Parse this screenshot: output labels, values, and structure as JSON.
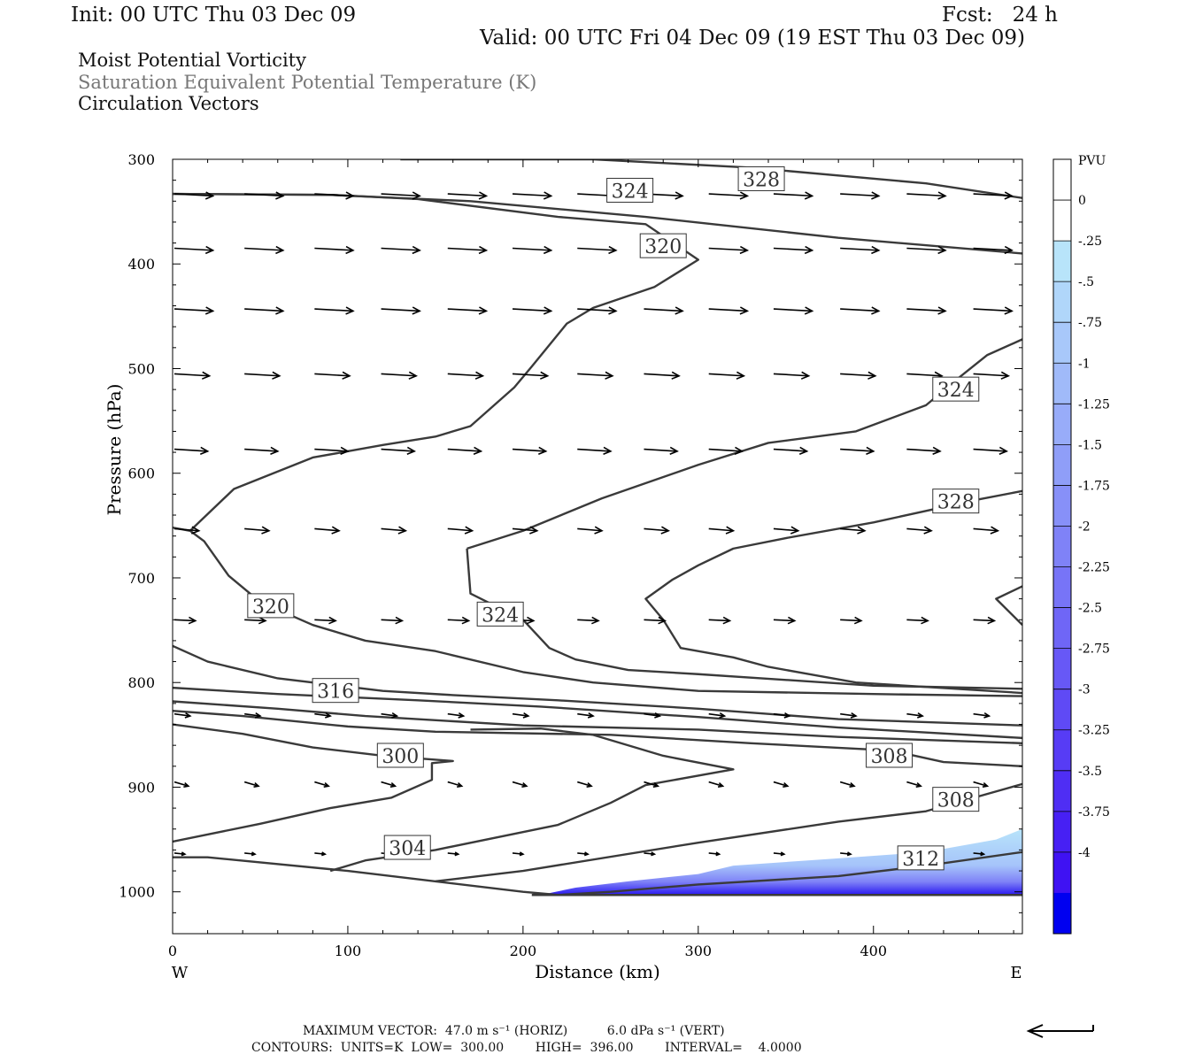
{
  "header": {
    "init": "Init: 00 UTC Thu 03 Dec 09",
    "fcst": "Fcst:   24 h",
    "valid": "Valid: 00 UTC Fri 04 Dec 09 (19 EST Thu 03 Dec 09)",
    "fields": [
      "Moist Potential Vorticity",
      "Saturation Equivalent Potential Temperature (K)",
      "Circulation Vectors"
    ]
  },
  "footer": {
    "line1": "MAXIMUM VECTOR:  47.0 m s⁻¹ (HORIZ)          6.0 dPa s⁻¹ (VERT)",
    "line2": "CONTOURS:  UNITS=K  LOW=  300.00        HIGH=  396.00        INTERVAL=    4.0000"
  },
  "colors": {
    "contour": "#3a3a3a",
    "vector": "#000000",
    "pv_scale": [
      "#ffffff",
      "#ffffff",
      "#b8e4fa",
      "#b0d6fa",
      "#a8c8fa",
      "#a0baf9",
      "#98acf9",
      "#8f9ef8",
      "#8790f8",
      "#7f82f7",
      "#7774f7",
      "#6f66f6",
      "#6758f6",
      "#5f4af5",
      "#573cf5",
      "#4f2ef4",
      "#4720f4",
      "#3f12f3",
      "#0000f0"
    ]
  },
  "chart_data": {
    "type": "cross-section",
    "xlabel": "Distance (km)",
    "ylabel": "Pressure (hPa)",
    "xlim": [
      0,
      485
    ],
    "ylim": [
      1040,
      300
    ],
    "x_ticks": [
      0,
      100,
      200,
      300,
      400
    ],
    "y_ticks": [
      300,
      400,
      500,
      600,
      700,
      800,
      900,
      1000
    ],
    "x_end_labels": {
      "left": "W",
      "right": "E"
    },
    "colorbar": {
      "title": "PVU",
      "labels": [
        "0",
        "-.25",
        "-.5",
        "-.75",
        "-1",
        "-1.25",
        "-1.5",
        "-1.75",
        "-2",
        "-2.25",
        "-2.5",
        "-2.75",
        "-3",
        "-3.25",
        "-3.5",
        "-3.75",
        "-4"
      ]
    },
    "contour_labels": [
      {
        "text": "328",
        "x": 336,
        "p": 319
      },
      {
        "text": "324",
        "x": 261,
        "p": 330
      },
      {
        "text": "320",
        "x": 280,
        "p": 383
      },
      {
        "text": "324",
        "x": 447,
        "p": 520
      },
      {
        "text": "328",
        "x": 447,
        "p": 627
      },
      {
        "text": "320",
        "x": 56,
        "p": 727
      },
      {
        "text": "324",
        "x": 187,
        "p": 735
      },
      {
        "text": "316",
        "x": 93,
        "p": 808
      },
      {
        "text": "300",
        "x": 130,
        "p": 870
      },
      {
        "text": "308",
        "x": 409,
        "p": 870
      },
      {
        "text": "308",
        "x": 447,
        "p": 912
      },
      {
        "text": "304",
        "x": 134,
        "p": 958
      },
      {
        "text": "312",
        "x": 427,
        "p": 968
      }
    ],
    "contours": [
      [
        [
          130,
          300
        ],
        [
          240,
          300
        ]
      ],
      [
        [
          240,
          300
        ],
        [
          330,
          308
        ],
        [
          430,
          323
        ],
        [
          485,
          337
        ]
      ],
      [
        [
          0,
          333
        ],
        [
          90,
          334
        ],
        [
          170,
          340
        ],
        [
          270,
          355
        ],
        [
          380,
          375
        ],
        [
          485,
          390
        ]
      ],
      [
        [
          0,
          333
        ],
        [
          90,
          334
        ],
        [
          140,
          338
        ],
        [
          220,
          355
        ],
        [
          270,
          362
        ],
        [
          300,
          396
        ],
        [
          275,
          422
        ],
        [
          240,
          442
        ],
        [
          225,
          457
        ],
        [
          205,
          498
        ],
        [
          195,
          518
        ],
        [
          170,
          555
        ],
        [
          150,
          565
        ],
        [
          120,
          573
        ],
        [
          80,
          585
        ],
        [
          35,
          615
        ],
        [
          10,
          655
        ]
      ],
      [
        [
          0,
          652
        ],
        [
          10,
          655
        ],
        [
          18,
          665
        ],
        [
          32,
          698
        ],
        [
          50,
          723
        ],
        [
          80,
          745
        ],
        [
          110,
          760
        ],
        [
          150,
          770
        ],
        [
          200,
          790
        ],
        [
          240,
          800
        ],
        [
          300,
          808
        ],
        [
          400,
          811
        ],
        [
          485,
          813
        ]
      ],
      [
        [
          485,
          472
        ],
        [
          465,
          487
        ],
        [
          450,
          507
        ],
        [
          430,
          535
        ],
        [
          390,
          560
        ],
        [
          340,
          571
        ],
        [
          300,
          592
        ],
        [
          245,
          624
        ],
        [
          200,
          655
        ],
        [
          168,
          672
        ]
      ],
      [
        [
          168,
          672
        ],
        [
          170,
          715
        ],
        [
          200,
          740
        ],
        [
          215,
          767
        ],
        [
          230,
          778
        ],
        [
          260,
          788
        ],
        [
          300,
          792
        ],
        [
          400,
          803
        ],
        [
          485,
          806
        ]
      ],
      [
        [
          485,
          617
        ],
        [
          460,
          625
        ],
        [
          400,
          647
        ],
        [
          350,
          662
        ],
        [
          320,
          672
        ],
        [
          300,
          688
        ],
        [
          285,
          702
        ],
        [
          270,
          720
        ],
        [
          280,
          740
        ],
        [
          290,
          767
        ],
        [
          320,
          776
        ],
        [
          340,
          785
        ],
        [
          390,
          800
        ],
        [
          485,
          810
        ]
      ],
      [
        [
          485,
          708
        ],
        [
          470,
          720
        ],
        [
          485,
          745
        ]
      ],
      [
        [
          0,
          765
        ],
        [
          20,
          780
        ],
        [
          60,
          796
        ],
        [
          120,
          808
        ],
        [
          160,
          812
        ],
        [
          220,
          817
        ],
        [
          300,
          825
        ],
        [
          380,
          835
        ],
        [
          485,
          841
        ]
      ],
      [
        [
          0,
          805
        ],
        [
          60,
          811
        ],
        [
          140,
          817
        ],
        [
          210,
          823
        ],
        [
          300,
          833
        ],
        [
          380,
          843
        ],
        [
          485,
          853
        ]
      ],
      [
        [
          0,
          818
        ],
        [
          60,
          825
        ],
        [
          110,
          832
        ],
        [
          200,
          841
        ],
        [
          300,
          845
        ],
        [
          380,
          852
        ],
        [
          485,
          858
        ]
      ],
      [
        [
          0,
          827
        ],
        [
          40,
          832
        ],
        [
          100,
          842
        ],
        [
          150,
          847
        ],
        [
          250,
          850
        ],
        [
          330,
          858
        ],
        [
          410,
          865
        ],
        [
          440,
          876
        ],
        [
          485,
          880
        ]
      ],
      [
        [
          0,
          840
        ],
        [
          40,
          849
        ],
        [
          80,
          862
        ],
        [
          120,
          870
        ],
        [
          160,
          875
        ],
        [
          148,
          877
        ],
        [
          148,
          893
        ],
        [
          125,
          910
        ],
        [
          90,
          920
        ],
        [
          50,
          935
        ],
        [
          0,
          952
        ]
      ],
      [
        [
          90,
          980
        ],
        [
          110,
          970
        ],
        [
          150,
          960
        ],
        [
          220,
          936
        ],
        [
          250,
          915
        ],
        [
          270,
          898
        ],
        [
          320,
          883
        ],
        [
          280,
          870
        ],
        [
          240,
          850
        ],
        [
          210,
          844
        ],
        [
          170,
          845
        ]
      ],
      [
        [
          150,
          990
        ],
        [
          200,
          980
        ],
        [
          300,
          953
        ],
        [
          380,
          933
        ],
        [
          430,
          923
        ],
        [
          485,
          897
        ]
      ],
      [
        [
          0,
          967
        ],
        [
          20,
          967
        ],
        [
          100,
          980
        ],
        [
          200,
          1000
        ],
        [
          220,
          1003
        ],
        [
          250,
          1000
        ],
        [
          300,
          993
        ],
        [
          380,
          985
        ],
        [
          430,
          975
        ],
        [
          485,
          962
        ]
      ],
      [
        [
          205,
          1003
        ],
        [
          485,
          1003
        ]
      ]
    ],
    "vectors": {
      "rows_p": [
        333,
        385,
        443,
        505,
        577,
        653,
        740,
        830,
        895,
        963
      ],
      "cols_x": [
        0,
        40,
        80,
        118,
        156,
        193,
        230,
        268,
        305,
        342,
        380,
        418,
        456
      ],
      "row_dx": [
        22,
        22,
        22,
        20,
        19,
        14,
        12,
        9,
        8,
        6
      ],
      "row_dp": [
        2,
        2,
        2,
        2,
        2,
        2,
        1,
        2,
        4,
        1
      ]
    },
    "pv_fill": {
      "top_edge": [
        [
          210,
          1003
        ],
        [
          230,
          996
        ],
        [
          260,
          990
        ],
        [
          300,
          983
        ],
        [
          320,
          975
        ],
        [
          380,
          968
        ],
        [
          430,
          962
        ],
        [
          470,
          950
        ],
        [
          485,
          940
        ]
      ],
      "bottom_p": 1003
    }
  }
}
